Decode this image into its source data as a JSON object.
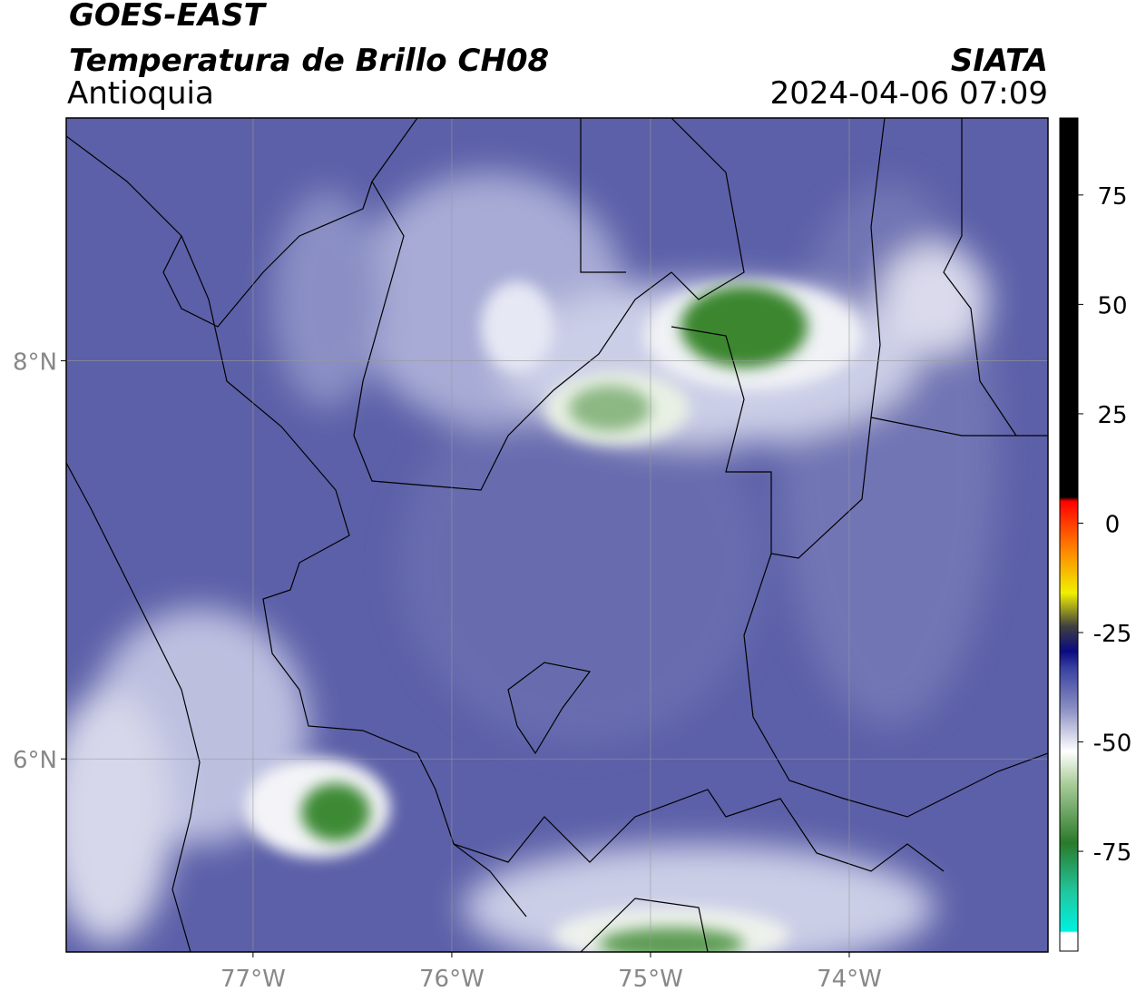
{
  "header": {
    "title": "GOES-EAST",
    "subtitle": "Temperatura de Brillo CH08",
    "source": "SIATA",
    "region": "Antioquia",
    "datetime": "2024-04-06 07:09"
  },
  "map": {
    "xlim": [
      -77.94,
      -73.0
    ],
    "ylim": [
      5.03,
      9.22
    ],
    "xticks": [
      {
        "value": -77,
        "label": "77°W"
      },
      {
        "value": -76,
        "label": "76°W"
      },
      {
        "value": -75,
        "label": "75°W"
      },
      {
        "value": -74,
        "label": "74°W"
      }
    ],
    "yticks": [
      {
        "value": 6,
        "label": "6°N"
      },
      {
        "value": 8,
        "label": "8°N"
      }
    ],
    "grid": true
  },
  "colorbar": {
    "lim": [
      -97.8,
      92.6
    ],
    "ticks": [
      -75,
      -50,
      -25,
      0,
      25,
      50,
      75
    ]
  }
}
